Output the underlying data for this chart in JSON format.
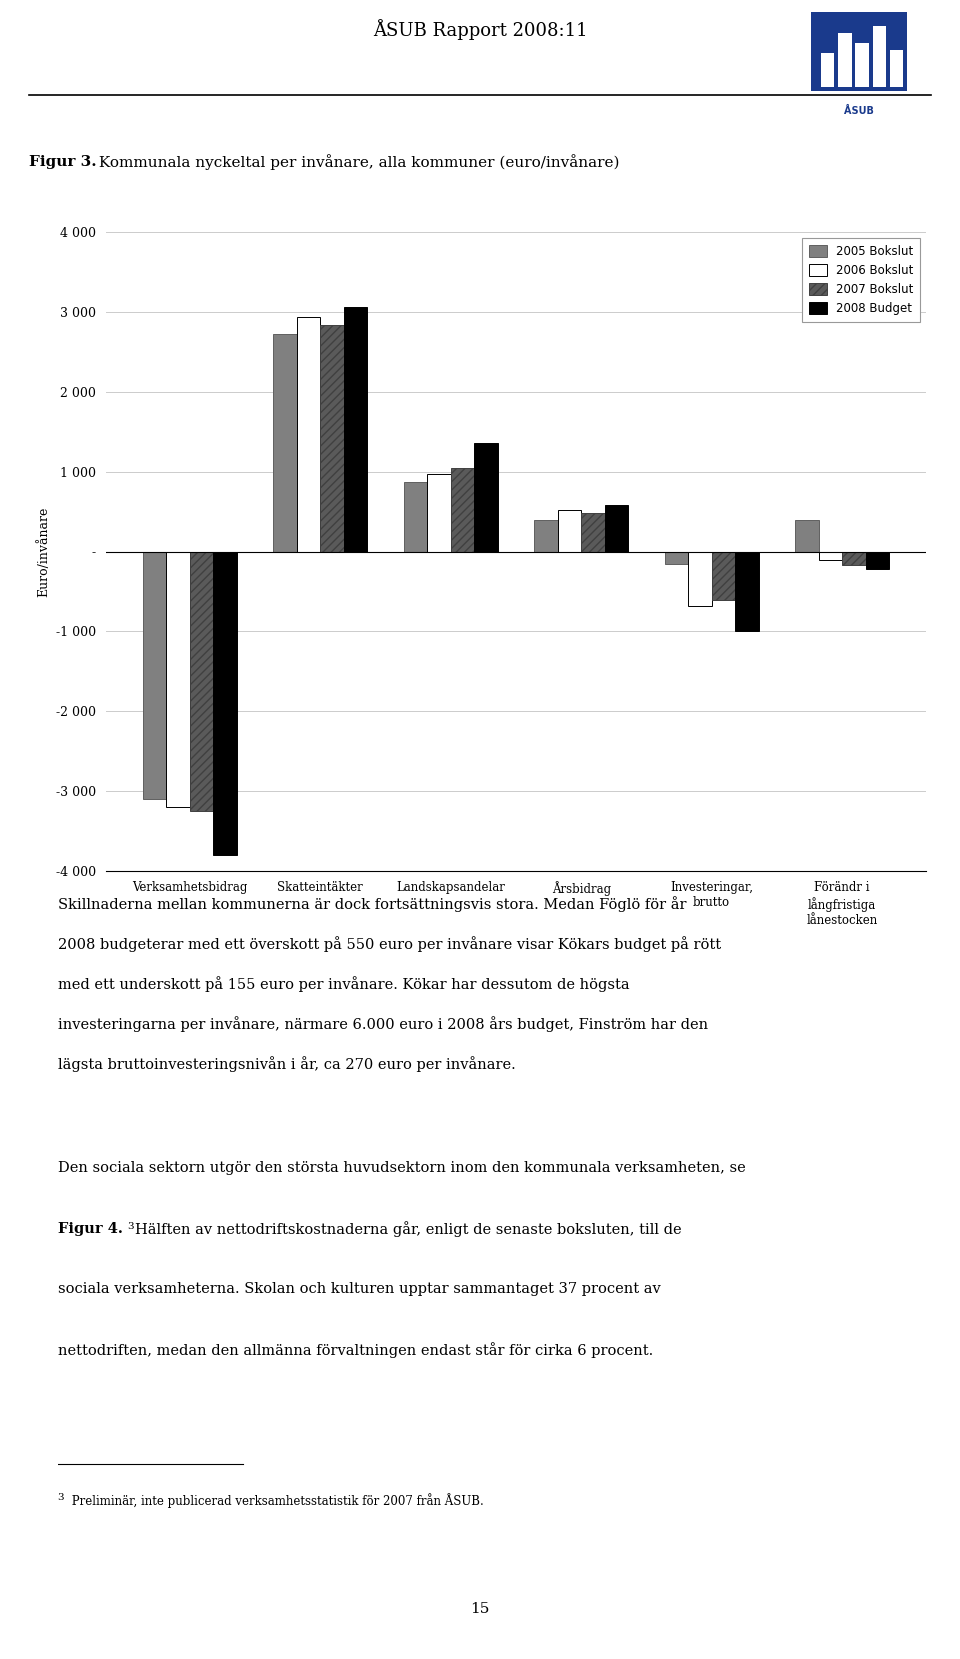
{
  "title_figur": "Figur 3.",
  "title_rest": " Kommunala nyckeltal per invånare, alla kommuner (euro/invånare)",
  "categories": [
    "Verksamhetsbidrag",
    "Skatteintäkter",
    "Landskapsandelar",
    "Årsbidrag",
    "Investeringar,\nbrutto",
    "Förändr i\nlångfristiga\nlånestocken"
  ],
  "series": {
    "2005 Bokslut": [
      -3100,
      2730,
      870,
      390,
      -150,
      390
    ],
    "2006 Bokslut": [
      -3200,
      2940,
      970,
      520,
      -680,
      -100
    ],
    "2007 Bokslut": [
      -3250,
      2840,
      1050,
      480,
      -600,
      -170
    ],
    "2008 Budget": [
      -3800,
      3060,
      1360,
      590,
      -1000,
      -220
    ]
  },
  "series_order": [
    "2005 Bokslut",
    "2006 Bokslut",
    "2007 Bokslut",
    "2008 Budget"
  ],
  "colors": [
    "#808080",
    "#ffffff",
    "#5a5a5a",
    "#000000"
  ],
  "hatches": [
    "",
    "",
    "////",
    ""
  ],
  "edgecolors": [
    "#606060",
    "#000000",
    "#404040",
    "#000000"
  ],
  "ylabel": "Euro/invånare",
  "ylim": [
    -4000,
    4000
  ],
  "yticks": [
    -4000,
    -3000,
    -2000,
    -1000,
    0,
    1000,
    2000,
    3000,
    4000
  ],
  "ytick_labels": [
    "-4 000",
    "-3 000",
    "-2 000",
    "-1 000",
    "-",
    "1 000",
    "2 000",
    "3 000",
    "4 000"
  ],
  "header_text": "ÅSUB Rapport 2008:11",
  "body_text1_lines": [
    "Skillnaderna mellan kommunerna är dock fortsättningsvis stora. Medan Föglö för år",
    "2008 budgeterar med ett överskott på 550 euro per invånare visar Kökars budget på rött",
    "med ett underskott på 155 euro per invånare. Kökar har dessutom de högsta",
    "investeringarna per invånare, närmare 6.000 euro i 2008 års budget, Finström har den",
    "lägsta bruttoinvesteringsnivån i år, ca 270 euro per invånare."
  ],
  "body_text2_line1": "Den sociala sektorn utgör den största huvudsektorn inom den kommunala verksamheten, se",
  "body_text2_figur": "Figur 4.",
  "body_text2_sup": "3",
  "body_text2_lines": [
    "Hälften av nettodriftskostnaderna går, enligt de senaste boksluten, till de",
    "sociala verksamheterna. Skolan och kulturen upptar sammantaget 37 procent av",
    "nettodriften, medan den allmänna förvaltningen endast står för cirka 6 procent."
  ],
  "footnote_sup": "3",
  "footnote_text": " Preliminär, inte publicerad verksamhetsstatistik för 2007 från ÅSUB.",
  "page_number": "15"
}
